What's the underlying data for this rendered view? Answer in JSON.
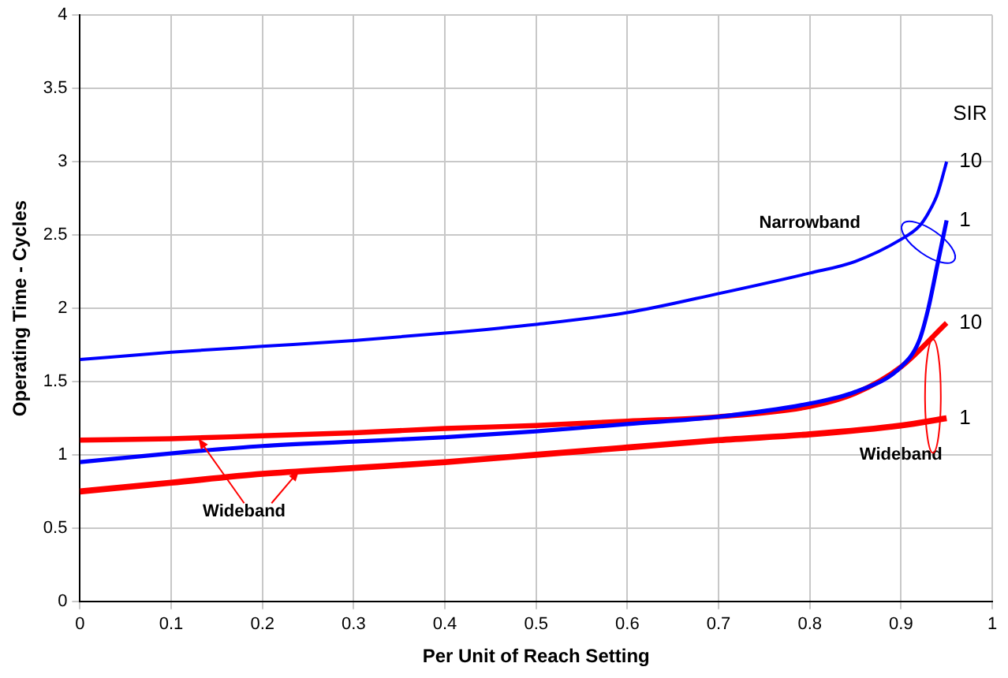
{
  "chart_data": {
    "type": "line",
    "xlabel": "Per Unit of Reach Setting",
    "ylabel": "Operating Time - Cycles",
    "legend_title": "SIR",
    "xlim": [
      0,
      1
    ],
    "xticks": [
      0,
      0.1,
      0.2,
      0.3,
      0.4,
      0.5,
      0.6,
      0.7,
      0.8,
      0.9,
      1
    ],
    "ylim": [
      0,
      4
    ],
    "yticks": [
      0,
      0.5,
      1,
      1.5,
      2,
      2.5,
      3,
      3.5,
      4
    ],
    "grid": true,
    "legend": false,
    "marker": "none",
    "line_style": "solid",
    "x": [
      0,
      0.1,
      0.2,
      0.3,
      0.4,
      0.5,
      0.6,
      0.7,
      0.8,
      0.85,
      0.9,
      0.92,
      0.93,
      0.94,
      0.95
    ],
    "series": [
      {
        "name": "10",
        "color": "#0000ff",
        "values": [
          1.65,
          1.7,
          1.74,
          1.78,
          1.83,
          1.89,
          1.97,
          2.1,
          2.24,
          2.32,
          2.47,
          2.56,
          2.65,
          2.78,
          3.0
        ]
      },
      {
        "name": "1",
        "color": "#0000ff",
        "values": [
          0.95,
          1.01,
          1.06,
          1.09,
          1.12,
          1.16,
          1.21,
          1.26,
          1.35,
          1.43,
          1.6,
          1.78,
          2.0,
          2.3,
          2.6
        ]
      },
      {
        "name": "10",
        "color": "#ff0000",
        "x": [
          0,
          0.1,
          0.2,
          0.3,
          0.4,
          0.5,
          0.6,
          0.7,
          0.8,
          0.85,
          0.9,
          0.95
        ],
        "values": [
          1.1,
          1.11,
          1.13,
          1.15,
          1.18,
          1.2,
          1.23,
          1.26,
          1.33,
          1.42,
          1.6,
          1.9
        ]
      },
      {
        "name": "1",
        "color": "#ff0000",
        "x": [
          0,
          0.1,
          0.2,
          0.3,
          0.4,
          0.5,
          0.6,
          0.7,
          0.8,
          0.9,
          0.95
        ],
        "values": [
          0.75,
          0.81,
          0.87,
          0.91,
          0.95,
          1.0,
          1.05,
          1.1,
          1.14,
          1.2,
          1.25
        ]
      }
    ],
    "annotations": [
      "Narrowband",
      "Wideband",
      {
        "text": "Wideband",
        "x": 0.13,
        "y": 1.11
      }
    ]
  }
}
